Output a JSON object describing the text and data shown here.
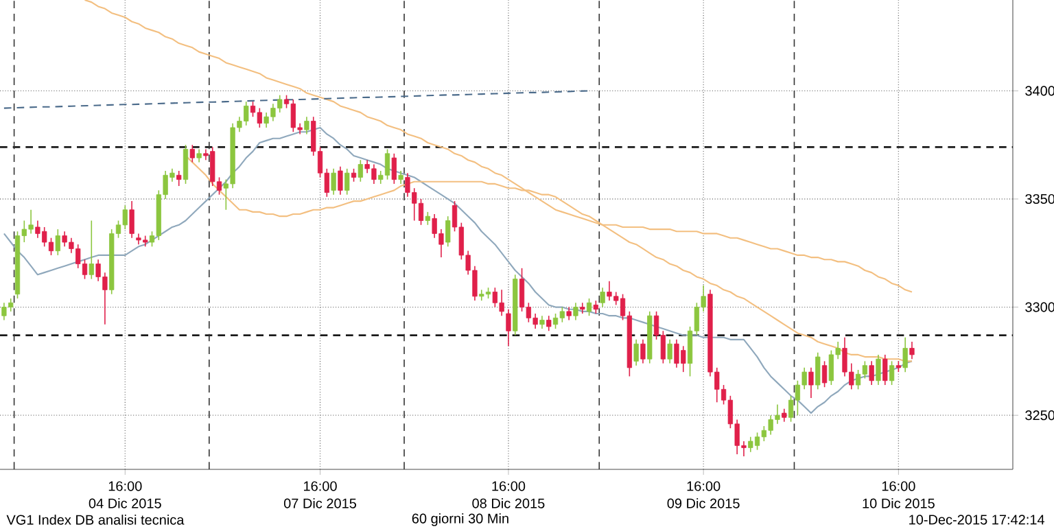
{
  "chart_data": {
    "type": "candlestick",
    "categories": [
      null,
      null,
      null,
      null,
      null,
      null,
      null,
      null,
      null,
      null,
      null,
      null,
      null,
      null,
      null,
      null,
      null,
      null,
      "16:00",
      null,
      null,
      null,
      null,
      null,
      null,
      null,
      null,
      null,
      null,
      null,
      null,
      null,
      null,
      null,
      null,
      null,
      null,
      null,
      null,
      null,
      null,
      null,
      null,
      null,
      null,
      null,
      null,
      "16:00",
      null,
      null,
      null,
      null,
      null,
      null,
      null,
      null,
      null,
      null,
      null,
      null,
      null,
      null,
      null,
      null,
      null,
      null,
      null,
      null,
      null,
      null,
      null,
      null,
      null,
      null,
      null,
      "16:00",
      null,
      null,
      null,
      null,
      null,
      null,
      null,
      null,
      null,
      null,
      null,
      null,
      null,
      null,
      null,
      null,
      null,
      null,
      null,
      null,
      null,
      null,
      null,
      null,
      null,
      null,
      null,
      null,
      "16:00",
      null,
      null,
      null,
      null,
      null,
      null,
      null,
      null,
      null,
      null,
      null,
      null,
      null,
      null,
      null,
      null,
      null,
      null,
      null,
      null,
      null,
      null,
      null,
      null,
      null,
      null,
      null,
      null,
      "16:00",
      null,
      null
    ],
    "ohlc": [
      [
        3296,
        3302,
        3294,
        3300
      ],
      [
        3300,
        3304,
        3298,
        3302
      ],
      [
        3306,
        3335,
        3304,
        3333
      ],
      [
        3333,
        3340,
        3330,
        3336
      ],
      [
        3336,
        3345,
        3334,
        3338
      ],
      [
        3337,
        3340,
        3332,
        3334
      ],
      [
        3335,
        3337,
        3328,
        3330
      ],
      [
        3330,
        3332,
        3324,
        3326
      ],
      [
        3326,
        3336,
        3324,
        3333
      ],
      [
        3333,
        3335,
        3328,
        3330
      ],
      [
        3330,
        3332,
        3325,
        3327
      ],
      [
        3327,
        3329,
        3318,
        3320
      ],
      [
        3320,
        3322,
        3313,
        3315
      ],
      [
        3315,
        3340,
        3313,
        3320
      ],
      [
        3320,
        3322,
        3312,
        3314
      ],
      [
        3314,
        3316,
        3292,
        3308
      ],
      [
        3308,
        3336,
        3306,
        3334
      ],
      [
        3334,
        3340,
        3332,
        3338
      ],
      [
        3338,
        3347,
        3336,
        3345
      ],
      [
        3345,
        3349,
        3332,
        3334
      ],
      [
        3332,
        3334,
        3329,
        3331
      ],
      [
        3331,
        3333,
        3328,
        3330
      ],
      [
        3330,
        3335,
        3328,
        3333
      ],
      [
        3333,
        3354,
        3331,
        3352
      ],
      [
        3352,
        3363,
        3350,
        3361
      ],
      [
        3360,
        3364,
        3358,
        3362
      ],
      [
        3361,
        3363,
        3356,
        3359
      ],
      [
        3359,
        3375,
        3357,
        3373
      ],
      [
        3373,
        3375,
        3367,
        3369
      ],
      [
        3369,
        3373,
        3367,
        3371
      ],
      [
        3371,
        3373,
        3368,
        3370
      ],
      [
        3372,
        3374,
        3356,
        3358
      ],
      [
        3358,
        3360,
        3352,
        3354
      ],
      [
        3355,
        3359,
        3345,
        3357
      ],
      [
        3357,
        3385,
        3355,
        3383
      ],
      [
        3383,
        3388,
        3381,
        3386
      ],
      [
        3386,
        3395,
        3384,
        3393
      ],
      [
        3393,
        3395,
        3388,
        3390
      ],
      [
        3390,
        3392,
        3383,
        3385
      ],
      [
        3385,
        3390,
        3383,
        3388
      ],
      [
        3388,
        3394,
        3386,
        3392
      ],
      [
        3392,
        3398,
        3390,
        3396
      ],
      [
        3396,
        3398,
        3392,
        3394
      ],
      [
        3394,
        3396,
        3381,
        3383
      ],
      [
        3383,
        3385,
        3380,
        3382
      ],
      [
        3382,
        3388,
        3380,
        3386
      ],
      [
        3386,
        3388,
        3370,
        3372
      ],
      [
        3372,
        3374,
        3360,
        3362
      ],
      [
        3362,
        3364,
        3351,
        3353
      ],
      [
        3354,
        3364,
        3352,
        3362
      ],
      [
        3363,
        3365,
        3352,
        3354
      ],
      [
        3354,
        3364,
        3352,
        3362
      ],
      [
        3362,
        3364,
        3358,
        3360
      ],
      [
        3360,
        3368,
        3358,
        3366
      ],
      [
        3366,
        3368,
        3362,
        3364
      ],
      [
        3364,
        3366,
        3357,
        3359
      ],
      [
        3359,
        3363,
        3357,
        3361
      ],
      [
        3361,
        3373,
        3359,
        3371
      ],
      [
        3369,
        3371,
        3357,
        3359
      ],
      [
        3359,
        3363,
        3357,
        3361
      ],
      [
        3360,
        3362,
        3351,
        3353
      ],
      [
        3353,
        3355,
        3340,
        3348
      ],
      [
        3348,
        3350,
        3338,
        3340
      ],
      [
        3340,
        3344,
        3338,
        3342
      ],
      [
        3341,
        3343,
        3332,
        3334
      ],
      [
        3334,
        3336,
        3323,
        3329
      ],
      [
        3330,
        3342,
        3328,
        3340
      ],
      [
        3347,
        3349,
        3335,
        3337
      ],
      [
        3337,
        3339,
        3322,
        3324
      ],
      [
        3324,
        3326,
        3315,
        3317
      ],
      [
        3317,
        3319,
        3303,
        3305
      ],
      [
        3305,
        3308,
        3303,
        3306
      ],
      [
        3306,
        3309,
        3304,
        3307
      ],
      [
        3307,
        3309,
        3300,
        3302
      ],
      [
        3302,
        3308,
        3296,
        3298
      ],
      [
        3297,
        3299,
        3282,
        3289
      ],
      [
        3289,
        3315,
        3287,
        3313
      ],
      [
        3313,
        3318,
        3298,
        3300
      ],
      [
        3300,
        3302,
        3293,
        3295
      ],
      [
        3295,
        3297,
        3290,
        3292
      ],
      [
        3292,
        3296,
        3290,
        3294
      ],
      [
        3294,
        3296,
        3289,
        3291
      ],
      [
        3292,
        3297,
        3290,
        3295
      ],
      [
        3295,
        3300,
        3293,
        3298
      ],
      [
        3298,
        3300,
        3294,
        3296
      ],
      [
        3296,
        3302,
        3294,
        3300
      ],
      [
        3300,
        3302,
        3297,
        3299
      ],
      [
        3298,
        3304,
        3296,
        3302
      ],
      [
        3301,
        3303,
        3297,
        3299
      ],
      [
        3302,
        3309,
        3300,
        3307
      ],
      [
        3307,
        3312,
        3303,
        3305
      ],
      [
        3305,
        3307,
        3301,
        3303
      ],
      [
        3304,
        3306,
        3294,
        3296
      ],
      [
        3296,
        3298,
        3268,
        3272
      ],
      [
        3275,
        3285,
        3273,
        3283
      ],
      [
        3283,
        3285,
        3274,
        3276
      ],
      [
        3276,
        3298,
        3274,
        3296
      ],
      [
        3296,
        3298,
        3285,
        3287
      ],
      [
        3287,
        3289,
        3274,
        3276
      ],
      [
        3276,
        3285,
        3274,
        3283
      ],
      [
        3283,
        3285,
        3272,
        3274
      ],
      [
        3280,
        3282,
        3270,
        3274
      ],
      [
        3274,
        3291,
        3268,
        3289
      ],
      [
        3289,
        3302,
        3287,
        3300
      ],
      [
        3300,
        3310,
        3298,
        3305
      ],
      [
        3306,
        3308,
        3268,
        3270
      ],
      [
        3270,
        3272,
        3256,
        3262
      ],
      [
        3262,
        3264,
        3255,
        3257
      ],
      [
        3257,
        3259,
        3244,
        3246
      ],
      [
        3246,
        3248,
        3232,
        3236
      ],
      [
        3236,
        3238,
        3231,
        3235
      ],
      [
        3235,
        3240,
        3233,
        3238
      ],
      [
        3236,
        3242,
        3234,
        3240
      ],
      [
        3240,
        3245,
        3238,
        3243
      ],
      [
        3243,
        3250,
        3241,
        3248
      ],
      [
        3248,
        3255,
        3246,
        3250
      ],
      [
        3251,
        3253,
        3247,
        3249
      ],
      [
        3249,
        3259,
        3247,
        3257
      ],
      [
        3257,
        3266,
        3250,
        3264
      ],
      [
        3264,
        3272,
        3262,
        3270
      ],
      [
        3270,
        3272,
        3258,
        3264
      ],
      [
        3264,
        3279,
        3262,
        3277
      ],
      [
        3273,
        3275,
        3263,
        3265
      ],
      [
        3266,
        3280,
        3264,
        3278
      ],
      [
        3278,
        3284,
        3276,
        3281
      ],
      [
        3281,
        3286,
        3268,
        3270
      ],
      [
        3270,
        3274,
        3262,
        3264
      ],
      [
        3264,
        3271,
        3262,
        3269
      ],
      [
        3269,
        3275,
        3267,
        3273
      ],
      [
        3273,
        3275,
        3264,
        3266
      ],
      [
        3266,
        3278,
        3264,
        3276
      ],
      [
        3276,
        3278,
        3264,
        3266
      ],
      [
        3266,
        3275,
        3264,
        3273
      ],
      [
        3273,
        3275,
        3270,
        3272
      ],
      [
        3272,
        3286,
        3270,
        3281
      ],
      [
        3281,
        3284,
        3276,
        3278
      ]
    ],
    "colors": [
      "#8cc63f",
      "#8cc63f",
      "#8cc63f",
      "#8cc63f",
      "#8cc63f",
      "#e0204a",
      "#e0204a",
      "#e0204a",
      "#8cc63f",
      "#e0204a",
      "#e0204a",
      "#e0204a",
      "#e0204a",
      "#8cc63f",
      "#e0204a",
      "#e0204a",
      "#8cc63f",
      "#8cc63f",
      "#8cc63f",
      "#e0204a",
      "#e0204a",
      "#e0204a",
      "#8cc63f",
      "#8cc63f",
      "#8cc63f",
      "#8cc63f",
      "#e0204a",
      "#8cc63f",
      "#e0204a",
      "#8cc63f",
      "#e0204a",
      "#e0204a",
      "#e0204a",
      "#8cc63f",
      "#8cc63f",
      "#8cc63f",
      "#8cc63f",
      "#e0204a",
      "#e0204a",
      "#8cc63f",
      "#8cc63f",
      "#8cc63f",
      "#e0204a",
      "#e0204a",
      "#e0204a",
      "#8cc63f",
      "#e0204a",
      "#e0204a",
      "#e0204a",
      "#8cc63f",
      "#e0204a",
      "#8cc63f",
      "#e0204a",
      "#8cc63f",
      "#e0204a",
      "#e0204a",
      "#8cc63f",
      "#8cc63f",
      "#e0204a",
      "#8cc63f",
      "#e0204a",
      "#e0204a",
      "#e0204a",
      "#8cc63f",
      "#e0204a",
      "#e0204a",
      "#8cc63f",
      "#e0204a",
      "#e0204a",
      "#e0204a",
      "#e0204a",
      "#8cc63f",
      "#8cc63f",
      "#e0204a",
      "#e0204a",
      "#e0204a",
      "#8cc63f",
      "#e0204a",
      "#e0204a",
      "#e0204a",
      "#8cc63f",
      "#e0204a",
      "#8cc63f",
      "#8cc63f",
      "#e0204a",
      "#8cc63f",
      "#e0204a",
      "#8cc63f",
      "#e0204a",
      "#8cc63f",
      "#e0204a",
      "#e0204a",
      "#e0204a",
      "#e0204a",
      "#8cc63f",
      "#e0204a",
      "#8cc63f",
      "#e0204a",
      "#e0204a",
      "#8cc63f",
      "#e0204a",
      "#e0204a",
      "#8cc63f",
      "#8cc63f",
      "#8cc63f",
      "#e0204a",
      "#e0204a",
      "#e0204a",
      "#e0204a",
      "#e0204a",
      "#e0204a",
      "#8cc63f",
      "#8cc63f",
      "#8cc63f",
      "#8cc63f",
      "#8cc63f",
      "#e0204a",
      "#8cc63f",
      "#8cc63f",
      "#8cc63f",
      "#e0204a",
      "#8cc63f",
      "#e0204a",
      "#8cc63f",
      "#8cc63f",
      "#e0204a",
      "#e0204a",
      "#8cc63f",
      "#8cc63f",
      "#e0204a",
      "#8cc63f",
      "#e0204a",
      "#8cc63f",
      "#e0204a",
      "#8cc63f",
      "#e0204a"
    ],
    "series": [
      {
        "type": "line",
        "color": "#8fa8bc",
        "values": [
          3334,
          3330,
          3326,
          3323,
          3319,
          3315,
          3316,
          3317,
          3318,
          3319,
          3320,
          3321,
          3322,
          3323,
          3324,
          3324,
          3324,
          3324,
          3324,
          3326,
          3328,
          3329,
          3331,
          3333,
          3335,
          3337,
          3338,
          3340,
          3343,
          3346,
          3349,
          3352,
          3355,
          3358,
          3362,
          3365,
          3369,
          3372,
          3376,
          3377,
          3378,
          3378,
          3379,
          3380,
          3381,
          3381,
          3382,
          3383,
          3380,
          3378,
          3375,
          3373,
          3370,
          3369,
          3368,
          3367,
          3366,
          3364,
          3363,
          3362,
          3361,
          3360,
          3358,
          3356,
          3354,
          3352,
          3350,
          3348,
          3345,
          3342,
          3339,
          3335,
          3332,
          3329,
          3325,
          3321,
          3317,
          3314,
          3311,
          3307,
          3304,
          3301,
          3300,
          3300,
          3299,
          3299,
          3298,
          3298,
          3297,
          3297,
          3296,
          3296,
          3295,
          3295,
          3294,
          3293,
          3292,
          3291,
          3290,
          3289,
          3288,
          3287,
          3287,
          3287,
          3286,
          3286,
          3286,
          3286,
          3285,
          3285,
          3285,
          3281,
          3277,
          3272,
          3268,
          3265,
          3262,
          3259,
          3257,
          3254,
          3251,
          3254,
          3256,
          3259,
          3261,
          3264,
          3266,
          3267,
          3268,
          3268,
          3269,
          3270,
          3271,
          3272,
          3274,
          3275
        ]
      },
      {
        "type": "line",
        "color": "#f3bf80",
        "values": [
          null,
          null,
          null,
          null,
          null,
          null,
          null,
          null,
          null,
          null,
          null,
          null,
          3442,
          3441,
          3439,
          3438,
          3436,
          3435,
          3434,
          3432,
          3431,
          3429,
          3428,
          3427,
          3425,
          3424,
          3422,
          3421,
          3420,
          3418,
          3417,
          3416,
          3415,
          3413,
          3412,
          3411,
          3410,
          3409,
          3408,
          3406,
          3405,
          3404,
          3403,
          3402,
          3401,
          3399,
          3398,
          3397,
          3396,
          3395,
          3393,
          3392,
          3391,
          3390,
          3388,
          3387,
          3386,
          3384,
          3383,
          3382,
          3380,
          3379,
          3378,
          3376,
          3375,
          3374,
          3373,
          3371,
          3370,
          3368,
          3367,
          3365,
          3364,
          3362,
          3361,
          3359,
          3357,
          3355,
          3353,
          3351,
          3349,
          3347,
          3345,
          3344,
          3343,
          3342,
          3341,
          3340,
          3339,
          3338,
          3336,
          3334,
          3332,
          3330,
          3329,
          3327,
          3325,
          3323,
          3322,
          3320,
          3319,
          3317,
          3316,
          3314,
          3313,
          3311,
          3310,
          3308,
          3307,
          3305,
          3304,
          3302,
          3300,
          3298,
          3296,
          3294,
          3292,
          3290,
          3288,
          3287,
          3286,
          3284,
          3283,
          3282,
          3281,
          3279,
          3278,
          3278,
          3277,
          3277,
          3277,
          3276,
          3276,
          3276,
          3275,
          3275
        ]
      },
      {
        "type": "line",
        "color": "#f3bf80",
        "values": [
          null,
          null,
          null,
          null,
          null,
          null,
          null,
          null,
          null,
          null,
          null,
          null,
          null,
          null,
          null,
          null,
          null,
          null,
          null,
          null,
          null,
          null,
          null,
          null,
          null,
          null,
          null,
          3370,
          3367,
          3364,
          3361,
          3357,
          3354,
          3351,
          3348,
          3345,
          3345,
          3344,
          3344,
          3343,
          3343,
          3342,
          3342,
          3343,
          3343,
          3344,
          3345,
          3345,
          3346,
          3346,
          3347,
          3348,
          3349,
          3349,
          3350,
          3351,
          3352,
          3353,
          3354,
          3356,
          3357,
          3358,
          3358,
          3358,
          3358,
          3358,
          3358,
          3358,
          3358,
          3358,
          3358,
          3358,
          3357,
          3357,
          3356,
          3355,
          3355,
          3354,
          3354,
          3353,
          3352,
          3352,
          3351,
          3349,
          3347,
          3345,
          3343,
          3342,
          3340,
          3338,
          3338,
          3338,
          3337,
          3337,
          3337,
          3337,
          3336,
          3336,
          3336,
          3336,
          3335,
          3335,
          3335,
          3335,
          3334,
          3334,
          3334,
          3333,
          3332,
          3332,
          3331,
          3330,
          3329,
          3328,
          3327,
          3327,
          3326,
          3325,
          3324,
          3324,
          3323,
          3323,
          3322,
          3322,
          3321,
          3321,
          3320,
          3319,
          3317,
          3316,
          3314,
          3313,
          3311,
          3310,
          3308,
          3307
        ]
      },
      {
        "type": "line",
        "color": "#4a6a8a",
        "line_style": "dashed",
        "values": [
          3392.0,
          3392.1,
          3392.2,
          3392.3,
          3392.4,
          3392.5,
          3392.6,
          3392.6,
          3392.7,
          3392.8,
          3392.9,
          3393.0,
          3393.1,
          3393.2,
          3393.3,
          3393.4,
          3393.5,
          3393.6,
          3393.7,
          3393.7,
          3393.8,
          3393.9,
          3394.0,
          3394.1,
          3394.2,
          3394.3,
          3394.4,
          3394.5,
          3394.6,
          3394.7,
          3394.8,
          3394.8,
          3394.9,
          3395.0,
          3395.1,
          3395.2,
          3395.3,
          3395.4,
          3395.5,
          3395.6,
          3395.7,
          3395.8,
          3395.9,
          3395.9,
          3396.0,
          3396.1,
          3396.2,
          3396.3,
          3396.4,
          3396.5,
          3396.6,
          3396.7,
          3396.8,
          3396.9,
          3397.0,
          3397.0,
          3397.1,
          3397.2,
          3397.3,
          3397.4,
          3397.5,
          3397.6,
          3397.7,
          3397.8,
          3397.9,
          3398.0,
          3398.1,
          3398.1,
          3398.2,
          3398.3,
          3398.4,
          3398.5,
          3398.6,
          3398.7,
          3398.8,
          3398.9,
          3399.0,
          3399.1,
          3399.2,
          3399.2,
          3399.3,
          3399.4,
          3399.5,
          3399.6,
          3399.7,
          3399.8,
          3399.9,
          3400.0,
          null,
          null,
          null,
          null,
          null,
          null,
          null,
          null,
          null,
          null,
          null,
          null,
          null,
          null,
          null,
          null,
          null,
          null,
          null,
          null,
          null,
          null,
          null,
          null,
          null,
          null,
          null,
          null,
          null,
          null,
          null,
          null,
          null,
          null,
          null,
          null,
          null,
          null,
          null,
          null,
          null,
          null,
          null,
          null,
          null,
          null,
          null,
          null
        ]
      }
    ],
    "ylim": [
      3225,
      3442
    ],
    "yticks": [
      3250,
      3300,
      3350,
      3400
    ],
    "grid": true,
    "ref_lines": [
      {
        "axis": "y",
        "value": 3374,
        "color": "#1a1a1a",
        "line_style": "dashed"
      },
      {
        "axis": "y",
        "value": 3287,
        "color": "#1a1a1a",
        "line_style": "dashed"
      }
    ],
    "annotations": [
      "04 Dic 2015",
      "07 Dic 2015",
      "08 Dic 2015",
      "09 Dic 2015",
      "10 Dic 2015",
      "VG1 Index DB analisi tecnica",
      "60 giorni 30 Min",
      "10-Dec-2015 17:42:14"
    ]
  }
}
